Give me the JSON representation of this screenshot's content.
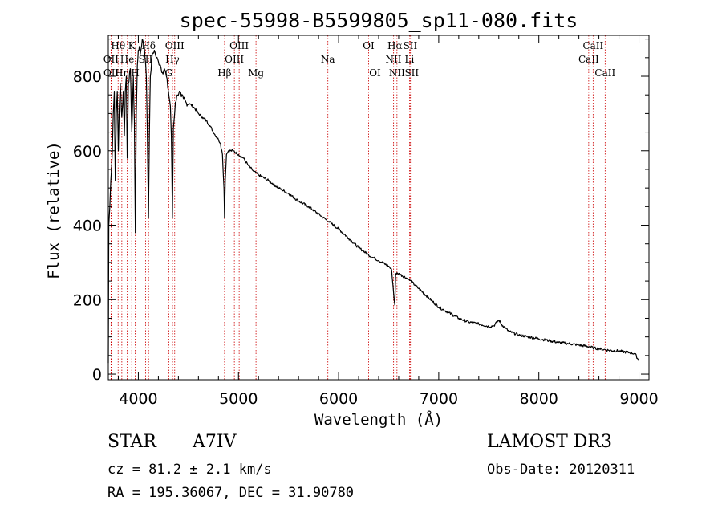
{
  "chart_data": {
    "type": "line",
    "title": "spec-55998-B5599805_sp11-080.fits",
    "xlabel": "Wavelength (Å)",
    "ylabel": "Flux (relative)",
    "xlim": [
      3700,
      9100
    ],
    "ylim": [
      -15,
      910
    ],
    "x_ticks": [
      4000,
      5000,
      6000,
      7000,
      8000,
      9000
    ],
    "y_ticks": [
      0,
      200,
      400,
      600,
      800
    ],
    "x_minor_step": 200,
    "y_minor_step": 50,
    "spectrum": [
      [
        3700,
        30
      ],
      [
        3705,
        400
      ],
      [
        3715,
        450
      ],
      [
        3725,
        520
      ],
      [
        3740,
        600
      ],
      [
        3750,
        700
      ],
      [
        3760,
        760
      ],
      [
        3770,
        520
      ],
      [
        3780,
        700
      ],
      [
        3790,
        760
      ],
      [
        3800,
        600
      ],
      [
        3810,
        720
      ],
      [
        3820,
        780
      ],
      [
        3835,
        690
      ],
      [
        3850,
        760
      ],
      [
        3860,
        640
      ],
      [
        3870,
        760
      ],
      [
        3880,
        800
      ],
      [
        3889,
        580
      ],
      [
        3900,
        780
      ],
      [
        3920,
        820
      ],
      [
        3935,
        650
      ],
      [
        3950,
        800
      ],
      [
        3960,
        680
      ],
      [
        3970,
        380
      ],
      [
        3980,
        700
      ],
      [
        3990,
        830
      ],
      [
        4000,
        870
      ],
      [
        4010,
        880
      ],
      [
        4020,
        860
      ],
      [
        4040,
        900
      ],
      [
        4060,
        880
      ],
      [
        4080,
        800
      ],
      [
        4090,
        640
      ],
      [
        4101,
        420
      ],
      [
        4110,
        640
      ],
      [
        4120,
        800
      ],
      [
        4140,
        860
      ],
      [
        4160,
        870
      ],
      [
        4180,
        850
      ],
      [
        4200,
        840
      ],
      [
        4220,
        830
      ],
      [
        4240,
        810
      ],
      [
        4260,
        820
      ],
      [
        4280,
        800
      ],
      [
        4300,
        760
      ],
      [
        4320,
        720
      ],
      [
        4330,
        640
      ],
      [
        4340,
        420
      ],
      [
        4350,
        660
      ],
      [
        4370,
        730
      ],
      [
        4390,
        750
      ],
      [
        4410,
        760
      ],
      [
        4430,
        745
      ],
      [
        4450,
        740
      ],
      [
        4480,
        728
      ],
      [
        4520,
        725
      ],
      [
        4560,
        715
      ],
      [
        4600,
        700
      ],
      [
        4640,
        690
      ],
      [
        4680,
        680
      ],
      [
        4720,
        665
      ],
      [
        4760,
        645
      ],
      [
        4800,
        630
      ],
      [
        4820,
        620
      ],
      [
        4840,
        590
      ],
      [
        4855,
        500
      ],
      [
        4861,
        420
      ],
      [
        4868,
        520
      ],
      [
        4880,
        590
      ],
      [
        4900,
        600
      ],
      [
        4950,
        600
      ],
      [
        5000,
        590
      ],
      [
        5050,
        580
      ],
      [
        5100,
        560
      ],
      [
        5150,
        545
      ],
      [
        5200,
        535
      ],
      [
        5300,
        520
      ],
      [
        5400,
        500
      ],
      [
        5500,
        485
      ],
      [
        5600,
        465
      ],
      [
        5700,
        450
      ],
      [
        5800,
        430
      ],
      [
        5900,
        410
      ],
      [
        6000,
        390
      ],
      [
        6100,
        365
      ],
      [
        6200,
        340
      ],
      [
        6300,
        320
      ],
      [
        6400,
        305
      ],
      [
        6500,
        290
      ],
      [
        6530,
        280
      ],
      [
        6555,
        200
      ],
      [
        6562,
        185
      ],
      [
        6570,
        270
      ],
      [
        6600,
        270
      ],
      [
        6700,
        255
      ],
      [
        6800,
        230
      ],
      [
        6900,
        205
      ],
      [
        7000,
        180
      ],
      [
        7100,
        165
      ],
      [
        7200,
        150
      ],
      [
        7300,
        140
      ],
      [
        7400,
        135
      ],
      [
        7500,
        128
      ],
      [
        7550,
        130
      ],
      [
        7600,
        145
      ],
      [
        7640,
        130
      ],
      [
        7700,
        115
      ],
      [
        7800,
        105
      ],
      [
        7900,
        100
      ],
      [
        8000,
        95
      ],
      [
        8100,
        90
      ],
      [
        8200,
        85
      ],
      [
        8300,
        82
      ],
      [
        8400,
        78
      ],
      [
        8500,
        74
      ],
      [
        8550,
        70
      ],
      [
        8600,
        68
      ],
      [
        8650,
        66
      ],
      [
        8700,
        64
      ],
      [
        8800,
        62
      ],
      [
        8900,
        58
      ],
      [
        8960,
        55
      ],
      [
        8990,
        40
      ],
      [
        9000,
        35
      ]
    ],
    "line_markers": [
      {
        "label": "Hθ",
        "x": 3798,
        "row": 0
      },
      {
        "label": "OII",
        "x": 3727,
        "row": 1
      },
      {
        "label": "OII",
        "x": 3729,
        "row": 2
      },
      {
        "label": "Hη",
        "x": 3835,
        "row": 2
      },
      {
        "label": "He",
        "x": 3889,
        "row": 1
      },
      {
        "label": "K",
        "x": 3934,
        "row": 0
      },
      {
        "label": "H",
        "x": 3969,
        "row": 2
      },
      {
        "label": "SII",
        "x": 4072,
        "row": 1
      },
      {
        "label": "Hδ",
        "x": 4102,
        "row": 0
      },
      {
        "label": "G",
        "x": 4304,
        "row": 2
      },
      {
        "label": "Hγ",
        "x": 4341,
        "row": 1
      },
      {
        "label": "OIII",
        "x": 4363,
        "row": 0
      },
      {
        "label": "Hβ",
        "x": 4861,
        "row": 2
      },
      {
        "label": "OIII",
        "x": 4959,
        "row": 1
      },
      {
        "label": "OIII",
        "x": 5007,
        "row": 0
      },
      {
        "label": "Mg",
        "x": 5175,
        "row": 2
      },
      {
        "label": "Na",
        "x": 5893,
        "row": 1
      },
      {
        "label": "OI",
        "x": 6300,
        "row": 0
      },
      {
        "label": "OI",
        "x": 6364,
        "row": 2
      },
      {
        "label": "NII",
        "x": 6548,
        "row": 1
      },
      {
        "label": "Hα",
        "x": 6563,
        "row": 0
      },
      {
        "label": "NII",
        "x": 6583,
        "row": 2
      },
      {
        "label": "Li",
        "x": 6708,
        "row": 1
      },
      {
        "label": "SII",
        "x": 6716,
        "row": 0
      },
      {
        "label": "SII",
        "x": 6731,
        "row": 2
      },
      {
        "label": "CaII",
        "x": 8498,
        "row": 1
      },
      {
        "label": "CaII",
        "x": 8542,
        "row": 0
      },
      {
        "label": "CaII",
        "x": 8662,
        "row": 2
      }
    ]
  },
  "info": {
    "object_class": "STAR",
    "subclass": "A7IV",
    "survey": "LAMOST DR3",
    "redshift": "cz = 81.2 ± 2.1 km/s",
    "obs_date": "Obs-Date: 20120311",
    "coords": "RA = 195.36067, DEC =  31.90780"
  },
  "colors": {
    "axis": "#000000",
    "spectrum": "#000000",
    "marker_line": "#cc0000",
    "background": "#ffffff"
  }
}
